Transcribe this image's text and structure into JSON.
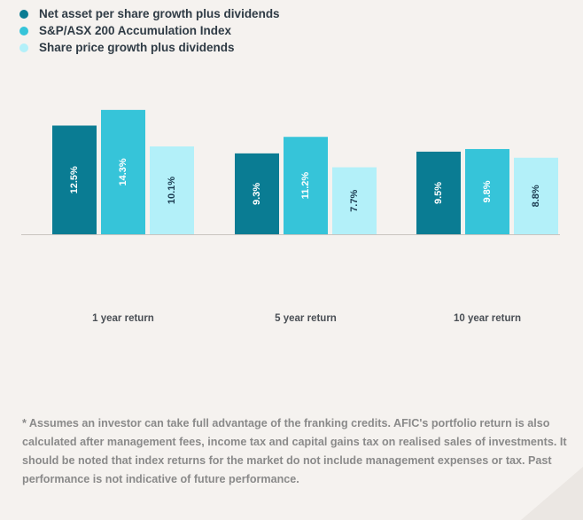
{
  "legend": {
    "items": [
      {
        "label": "Net asset per share growth plus dividends",
        "color": "#0a7c93"
      },
      {
        "label": "S&P/ASX 200 Accumulation Index",
        "color": "#36c4d9"
      },
      {
        "label": "Share price growth plus dividends",
        "color": "#b3f0f9"
      }
    ]
  },
  "chart_data": {
    "type": "bar",
    "categories": [
      "1 year return",
      "5 year return",
      "10 year return"
    ],
    "series": [
      {
        "name": "Net asset per share growth plus dividends",
        "values": [
          12.5,
          9.3,
          9.5
        ],
        "labels": [
          "12.5%",
          "9.3%",
          "9.5%"
        ],
        "color": "#0a7c93"
      },
      {
        "name": "S&P/ASX 200 Accumulation Index",
        "values": [
          14.3,
          11.2,
          9.8
        ],
        "labels": [
          "14.3%",
          "11.2%",
          "9.8%"
        ],
        "color": "#36c4d9"
      },
      {
        "name": "Share price growth plus dividends",
        "values": [
          10.1,
          7.7,
          8.8
        ],
        "labels": [
          "10.1%",
          "7.7%",
          "8.8%"
        ],
        "color": "#b3f0f9"
      }
    ],
    "title": "",
    "xlabel": "",
    "ylabel": "",
    "grid": false,
    "legend_position": "top-left"
  },
  "footnote": {
    "text": "* Assumes an investor can take full advantage of the franking credits. AFIC's portfolio return is also calculated after management fees, income tax and capital gains tax on realised sales of investments. It should be noted that index returns for the market do not include management expenses or tax. Past performance is not indicative of future performance."
  }
}
